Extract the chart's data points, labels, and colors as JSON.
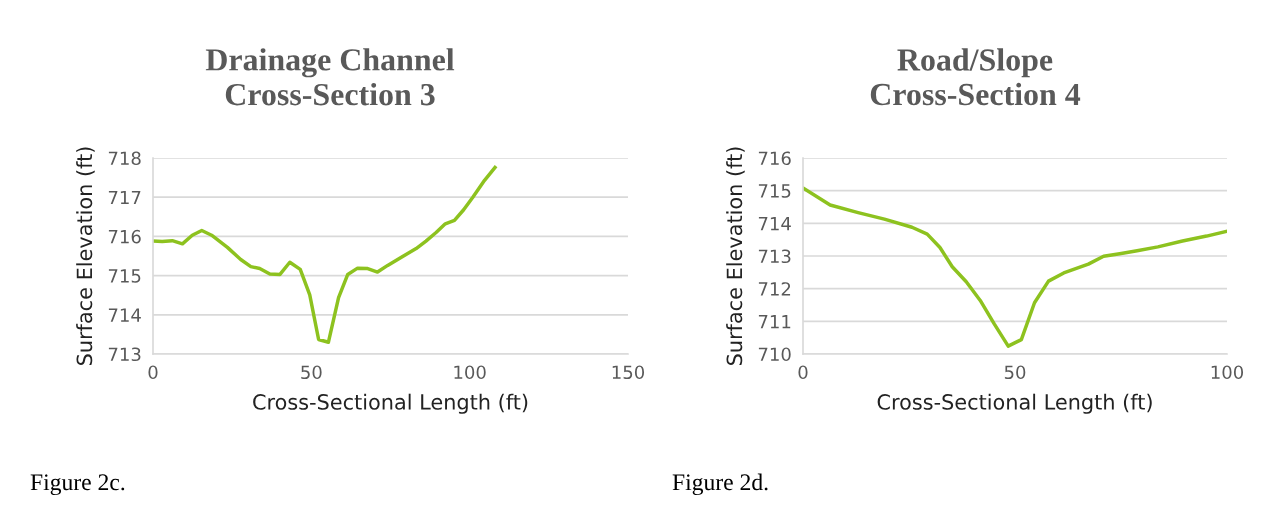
{
  "chart_data": [
    {
      "type": "line",
      "title": "Drainage Channel\nCross-Section 3",
      "xlabel": "Cross-Sectional Length (ft)",
      "ylabel": "Surface Elevation (ft)",
      "x": [
        0,
        2.9,
        6.1,
        9.3,
        12.4,
        15.4,
        18.5,
        23.5,
        27.7,
        30.9,
        33.7,
        36.9,
        40.1,
        43.2,
        46.5,
        49.5,
        52.3,
        55.4,
        58.6,
        61.5,
        64.6,
        67.8,
        70.9,
        74.1,
        79.9,
        83.1,
        86.2,
        89.4,
        92.3,
        95.2,
        98.1,
        101.0,
        104.7,
        108.0
      ],
      "series": [
        {
          "color": "#8dc21f",
          "values": [
            715.88,
            715.87,
            715.89,
            715.81,
            716.03,
            716.15,
            716.03,
            715.72,
            715.41,
            715.23,
            715.18,
            715.04,
            715.03,
            715.34,
            715.16,
            714.51,
            713.37,
            713.3,
            714.44,
            715.03,
            715.19,
            715.18,
            715.09,
            715.26,
            715.54,
            715.69,
            715.88,
            716.1,
            716.32,
            716.41,
            716.68,
            717.0,
            717.43,
            717.76
          ]
        }
      ],
      "xlim": [
        0,
        150
      ],
      "xticks": [
        0,
        50,
        100,
        150
      ],
      "ylim": [
        713,
        718
      ],
      "yticks": [
        713,
        714,
        715,
        716,
        717,
        718
      ],
      "grid": "y",
      "marker": "none",
      "line_style": "solid",
      "legend": false,
      "annotations": [
        "Figure 2c."
      ]
    },
    {
      "type": "line",
      "title": "Road/Slope\nCross-Section 4",
      "xlabel": "Cross-Sectional Length (ft)",
      "ylabel": "Surface Elevation (ft)",
      "x": [
        0,
        6.4,
        13.0,
        19.2,
        25.7,
        29.3,
        32.3,
        35.2,
        38.5,
        41.8,
        45.1,
        48.4,
        51.5,
        54.6,
        57.9,
        61.5,
        67.3,
        70.9,
        74.7,
        78.8,
        83.7,
        89.5,
        95.2,
        100.0
      ],
      "series": [
        {
          "color": "#8dc21f",
          "values": [
            715.08,
            714.56,
            714.33,
            714.13,
            713.88,
            713.67,
            713.26,
            712.67,
            712.21,
            711.64,
            710.92,
            710.24,
            710.44,
            711.57,
            712.23,
            712.48,
            712.75,
            712.99,
            713.07,
            713.16,
            713.28,
            713.46,
            713.61,
            713.76
          ]
        }
      ],
      "xlim": [
        0,
        100
      ],
      "xticks": [
        0,
        50,
        100
      ],
      "ylim": [
        710,
        716
      ],
      "yticks": [
        710,
        711,
        712,
        713,
        714,
        715,
        716
      ],
      "grid": "y",
      "marker": "none",
      "line_style": "solid",
      "legend": false,
      "annotations": [
        "Figure 2d."
      ]
    }
  ]
}
